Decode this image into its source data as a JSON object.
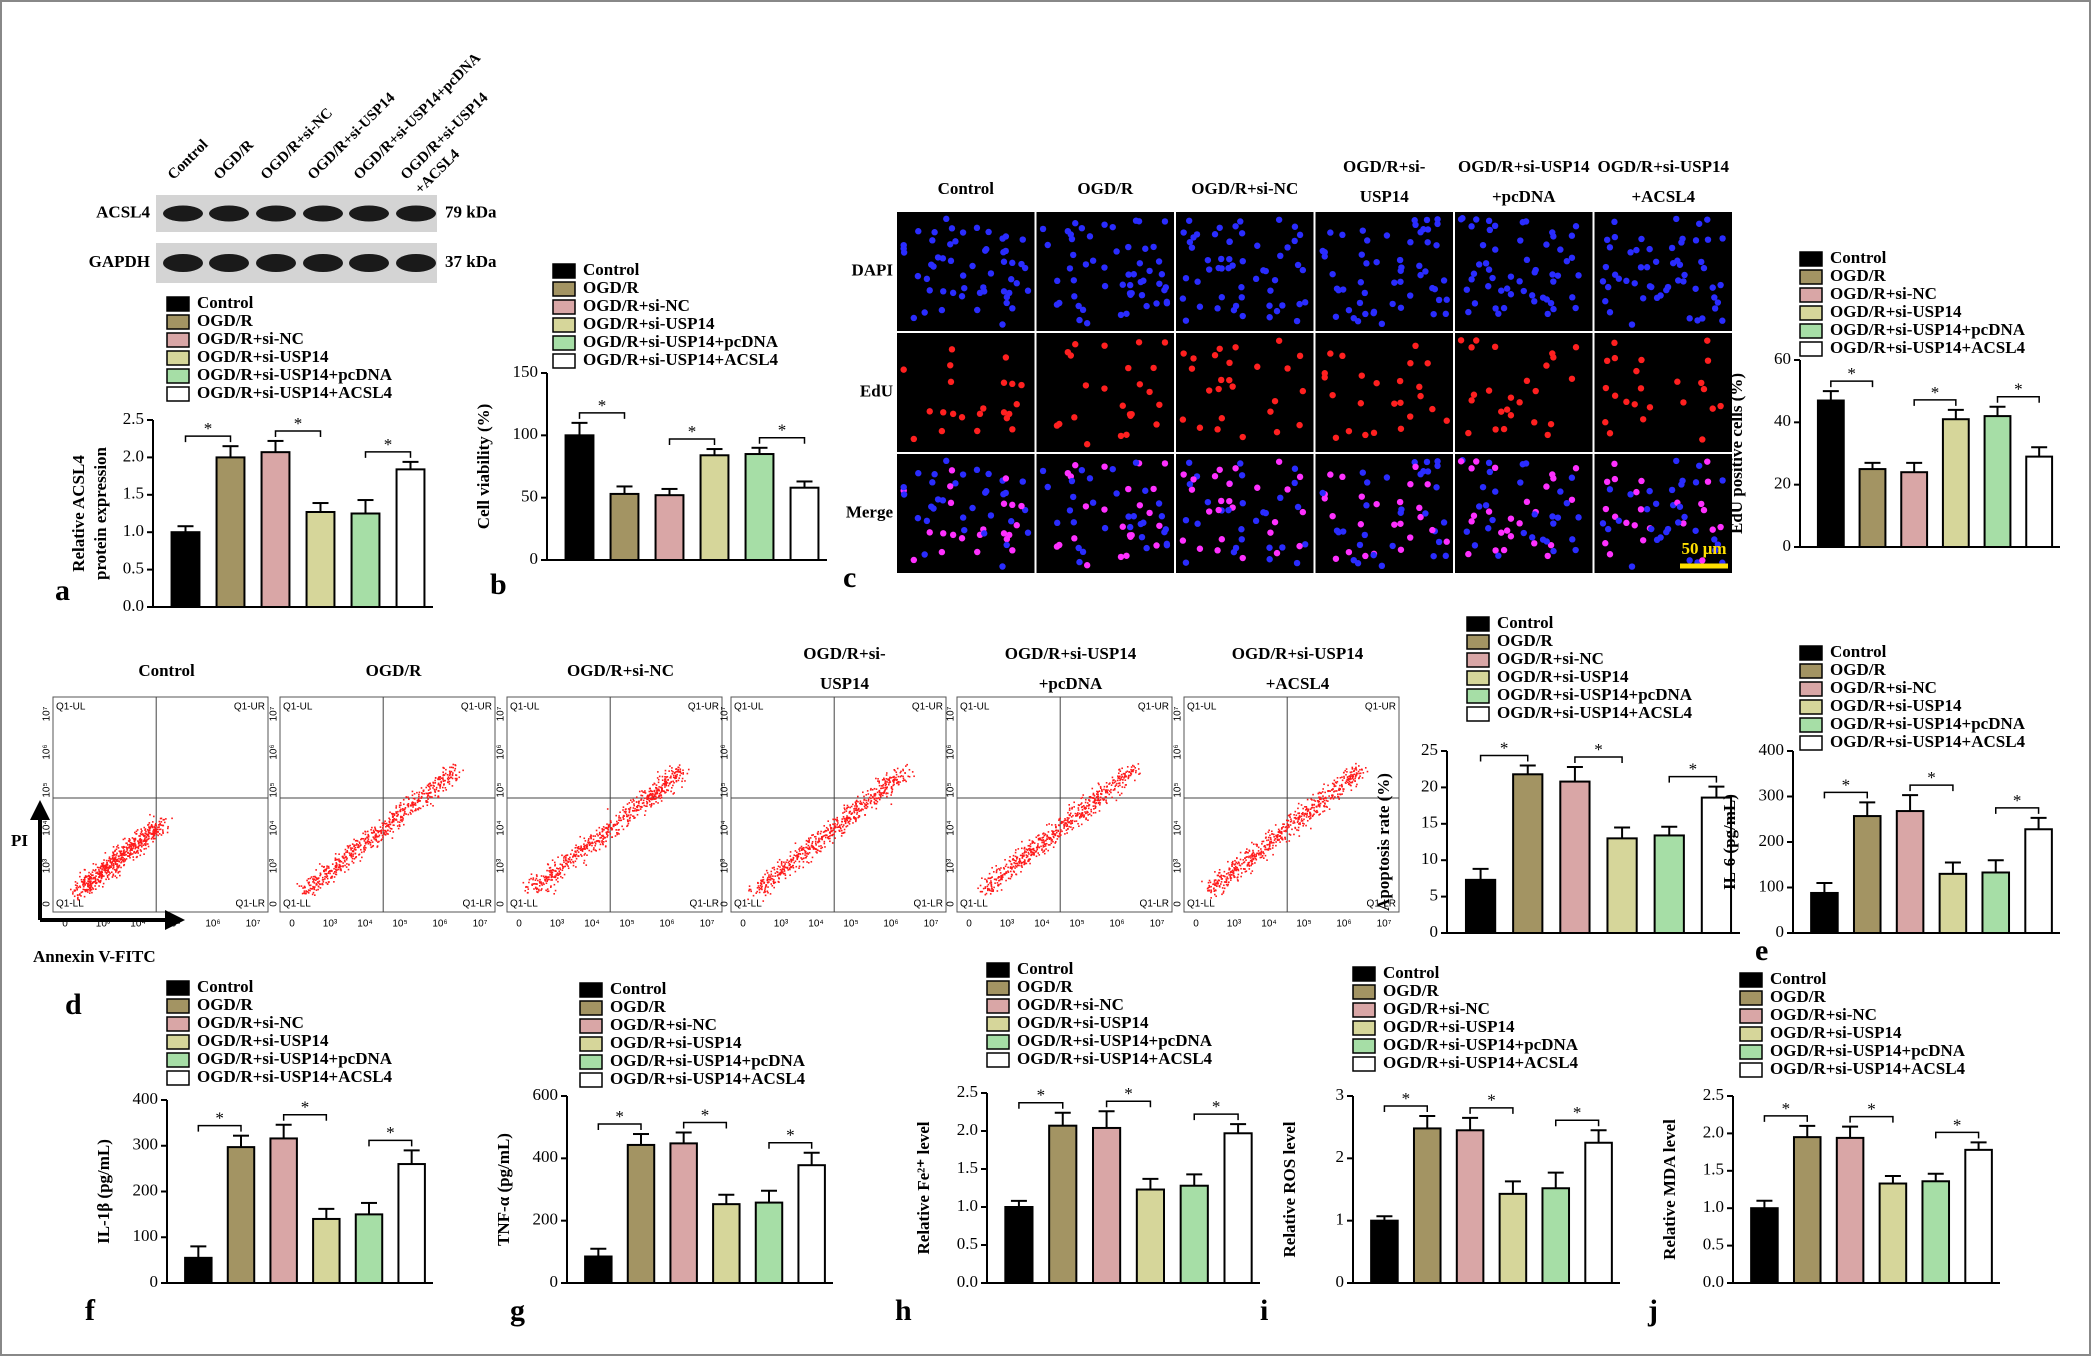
{
  "panel_letters": [
    "a",
    "b",
    "c",
    "d",
    "e",
    "f",
    "g",
    "h",
    "i",
    "j"
  ],
  "western_blot": {
    "lanes": [
      [
        "Control"
      ],
      [
        "OGD/R"
      ],
      [
        "OGD/R+si-NC"
      ],
      [
        "OGD/R+si-USP14"
      ],
      [
        "OGD/R+si-USP14+pcDNA"
      ],
      [
        "OGD/R+si-USP14",
        "+ACSL4"
      ]
    ],
    "proteins": [
      {
        "name": "ACSL4",
        "size": "79 kDa"
      },
      {
        "name": "GAPDH",
        "size": "37 kDa"
      }
    ]
  },
  "microscopy": {
    "columns": [
      [
        "Control"
      ],
      [
        "OGD/R"
      ],
      [
        "OGD/R+si-NC"
      ],
      [
        "OGD/R+si-",
        "USP14"
      ],
      [
        "OGD/R+si-USP14",
        "+pcDNA"
      ],
      [
        "OGD/R+si-USP14",
        "+ACSL4"
      ]
    ],
    "rows": [
      "DAPI",
      "EdU",
      "Merge"
    ],
    "scale_bar": "50 μm"
  },
  "flow_cytometry": {
    "titles": [
      [
        "Control"
      ],
      [
        "OGD/R"
      ],
      [
        "OGD/R+si-NC"
      ],
      [
        "OGD/R+si-",
        "USP14"
      ],
      [
        "OGD/R+si-USP14",
        "+pcDNA"
      ],
      [
        "OGD/R+si-USP14",
        "+ACSL4"
      ]
    ],
    "quadrants": [
      "Q1-UL",
      "Q1-UR",
      "Q1-LL",
      "Q1-LR"
    ],
    "axis_ticks": [
      "0",
      "10³",
      "10⁴",
      "10⁵",
      "10⁶",
      "10⁷"
    ],
    "xlabel": "Annexin V-FITC",
    "ylabel": "PI"
  },
  "chart_data": [
    {
      "type": "bar",
      "ylabel": [
        "Relative ACSL4",
        "protein expression"
      ],
      "categories": [
        "Control",
        "OGD/R",
        "OGD/R+si-NC",
        "OGD/R+si-USP14",
        "OGD/R+si-USP14+pcDNA",
        "OGD/R+si-USP14+ACSL4"
      ],
      "colors": [
        "#000000",
        "#a39463",
        "#d9a6a6",
        "#d6d69a",
        "#a6dea6",
        "#ffffff"
      ],
      "values": [
        1.0,
        2.0,
        2.07,
        1.27,
        1.25,
        1.84
      ],
      "errors": [
        0.08,
        0.15,
        0.15,
        0.12,
        0.18,
        0.1
      ],
      "ylim": [
        0,
        2.5
      ],
      "yticks": [
        {
          "value": 0,
          "label": "0.0"
        },
        0.5,
        {
          "value": 1,
          "label": "1.0"
        },
        1.5,
        {
          "value": 2,
          "label": "2.0"
        },
        2.5
      ],
      "brackets": [
        {
          "from": 0,
          "to": 1,
          "label": "*"
        },
        {
          "from": 2,
          "to": 3,
          "label": "*"
        },
        {
          "from": 4,
          "to": 5,
          "label": "*"
        }
      ]
    },
    {
      "type": "bar",
      "ylabel": [
        "Cell viability (%)"
      ],
      "categories": [
        "Control",
        "OGD/R",
        "OGD/R+si-NC",
        "OGD/R+si-USP14",
        "OGD/R+si-USP14+pcDNA",
        "OGD/R+si-USP14+ACSL4"
      ],
      "colors": [
        "#000000",
        "#a39463",
        "#d9a6a6",
        "#d6d69a",
        "#a6dea6",
        "#ffffff"
      ],
      "values": [
        100,
        53,
        52,
        84,
        85,
        58
      ],
      "errors": [
        10,
        6,
        5,
        5,
        5,
        5
      ],
      "ylim": [
        0,
        150
      ],
      "yticks": [
        0,
        50,
        100,
        150
      ],
      "brackets": [
        {
          "from": 0,
          "to": 1,
          "label": "*"
        },
        {
          "from": 2,
          "to": 3,
          "label": "*"
        },
        {
          "from": 4,
          "to": 5,
          "label": "*"
        }
      ]
    },
    {
      "type": "bar",
      "ylabel": [
        "EdU positive cells (%)"
      ],
      "categories": [
        "Control",
        "OGD/R",
        "OGD/R+si-NC",
        "OGD/R+si-USP14",
        "OGD/R+si-USP14+pcDNA",
        "OGD/R+si-USP14+ACSL4"
      ],
      "colors": [
        "#000000",
        "#a39463",
        "#d9a6a6",
        "#d6d69a",
        "#a6dea6",
        "#ffffff"
      ],
      "values": [
        47,
        25,
        24,
        41,
        42,
        29
      ],
      "errors": [
        3,
        2,
        3,
        3,
        3,
        3
      ],
      "ylim": [
        0,
        60
      ],
      "yticks": [
        0,
        20,
        40,
        60
      ],
      "brackets": [
        {
          "from": 0,
          "to": 1,
          "label": "*"
        },
        {
          "from": 2,
          "to": 3,
          "label": "*"
        },
        {
          "from": 4,
          "to": 5,
          "label": "*"
        }
      ]
    },
    {
      "type": "bar",
      "ylabel": [
        "Apoptosis rate (%)"
      ],
      "categories": [
        "Control",
        "OGD/R",
        "OGD/R+si-NC",
        "OGD/R+si-USP14",
        "OGD/R+si-USP14+pcDNA",
        "OGD/R+si-USP14+ACSL4"
      ],
      "colors": [
        "#000000",
        "#a39463",
        "#d9a6a6",
        "#d6d69a",
        "#a6dea6",
        "#ffffff"
      ],
      "values": [
        7.3,
        21.8,
        20.8,
        13,
        13.4,
        18.6
      ],
      "errors": [
        1.5,
        1.2,
        2,
        1.5,
        1.2,
        1.5
      ],
      "ylim": [
        0,
        25
      ],
      "yticks": [
        0,
        5,
        10,
        15,
        20,
        25
      ],
      "brackets": [
        {
          "from": 0,
          "to": 1,
          "label": "*"
        },
        {
          "from": 2,
          "to": 3,
          "label": "*"
        },
        {
          "from": 4,
          "to": 5,
          "label": "*"
        }
      ]
    },
    {
      "type": "bar",
      "ylabel": [
        "IL-6 (pg/mL)"
      ],
      "categories": [
        "Control",
        "OGD/R",
        "OGD/R+si-NC",
        "OGD/R+si-USP14",
        "OGD/R+si-USP14+pcDNA",
        "OGD/R+si-USP14+ACSL4"
      ],
      "colors": [
        "#000000",
        "#a39463",
        "#d9a6a6",
        "#d6d69a",
        "#a6dea6",
        "#ffffff"
      ],
      "values": [
        88,
        257,
        268,
        130,
        133,
        228
      ],
      "errors": [
        22,
        30,
        35,
        25,
        27,
        25
      ],
      "ylim": [
        0,
        400
      ],
      "yticks": [
        0,
        100,
        200,
        300,
        400
      ],
      "brackets": [
        {
          "from": 0,
          "to": 1,
          "label": "*"
        },
        {
          "from": 2,
          "to": 3,
          "label": "*"
        },
        {
          "from": 4,
          "to": 5,
          "label": "*"
        }
      ]
    },
    {
      "type": "bar",
      "ylabel": [
        "IL-1β (pg/mL)"
      ],
      "categories": [
        "Control",
        "OGD/R",
        "OGD/R+si-NC",
        "OGD/R+si-USP14",
        "OGD/R+si-USP14+pcDNA",
        "OGD/R+si-USP14+ACSL4"
      ],
      "colors": [
        "#000000",
        "#a39463",
        "#d9a6a6",
        "#d6d69a",
        "#a6dea6",
        "#ffffff"
      ],
      "values": [
        55,
        297,
        316,
        140,
        150,
        260
      ],
      "errors": [
        25,
        25,
        30,
        22,
        25,
        30
      ],
      "ylim": [
        0,
        400
      ],
      "yticks": [
        0,
        100,
        200,
        300,
        400
      ],
      "brackets": [
        {
          "from": 0,
          "to": 1,
          "label": "*"
        },
        {
          "from": 2,
          "to": 3,
          "label": "*"
        },
        {
          "from": 4,
          "to": 5,
          "label": "*"
        }
      ]
    },
    {
      "type": "bar",
      "ylabel": [
        "TNF-α (pg/mL)"
      ],
      "categories": [
        "Control",
        "OGD/R",
        "OGD/R+si-NC",
        "OGD/R+si-USP14",
        "OGD/R+si-USP14+pcDNA",
        "OGD/R+si-USP14+ACSL4"
      ],
      "colors": [
        "#000000",
        "#a39463",
        "#d9a6a6",
        "#d6d69a",
        "#a6dea6",
        "#ffffff"
      ],
      "values": [
        85,
        443,
        448,
        253,
        258,
        378
      ],
      "errors": [
        25,
        35,
        35,
        30,
        38,
        40
      ],
      "ylim": [
        0,
        600
      ],
      "yticks": [
        0,
        200,
        400,
        600
      ],
      "brackets": [
        {
          "from": 0,
          "to": 1,
          "label": "*"
        },
        {
          "from": 2,
          "to": 3,
          "label": "*"
        },
        {
          "from": 4,
          "to": 5,
          "label": "*"
        }
      ]
    },
    {
      "type": "bar",
      "ylabel": [
        "Relative Fe²⁺ level"
      ],
      "categories": [
        "Control",
        "OGD/R",
        "OGD/R+si-NC",
        "OGD/R+si-USP14",
        "OGD/R+si-USP14+pcDNA",
        "OGD/R+si-USP14+ACSL4"
      ],
      "colors": [
        "#000000",
        "#a39463",
        "#d9a6a6",
        "#d6d69a",
        "#a6dea6",
        "#ffffff"
      ],
      "values": [
        1.0,
        2.07,
        2.04,
        1.23,
        1.28,
        1.97
      ],
      "errors": [
        0.08,
        0.17,
        0.22,
        0.14,
        0.15,
        0.12
      ],
      "ylim": [
        0,
        2.5
      ],
      "yticks": [
        {
          "value": 0,
          "label": "0.0"
        },
        0.5,
        {
          "value": 1,
          "label": "1.0"
        },
        1.5,
        {
          "value": 2,
          "label": "2.0"
        },
        2.5
      ],
      "brackets": [
        {
          "from": 0,
          "to": 1,
          "label": "*"
        },
        {
          "from": 2,
          "to": 3,
          "label": "*"
        },
        {
          "from": 4,
          "to": 5,
          "label": "*"
        }
      ]
    },
    {
      "type": "bar",
      "ylabel": [
        "Relative ROS level"
      ],
      "categories": [
        "Control",
        "OGD/R",
        "OGD/R+si-NC",
        "OGD/R+si-USP14",
        "OGD/R+si-USP14+pcDNA",
        "OGD/R+si-USP14+ACSL4"
      ],
      "colors": [
        "#000000",
        "#a39463",
        "#d9a6a6",
        "#d6d69a",
        "#a6dea6",
        "#ffffff"
      ],
      "values": [
        1.0,
        2.48,
        2.45,
        1.43,
        1.52,
        2.25
      ],
      "errors": [
        0.07,
        0.2,
        0.2,
        0.2,
        0.25,
        0.2
      ],
      "ylim": [
        0,
        3
      ],
      "yticks": [
        0,
        1,
        2,
        3
      ],
      "brackets": [
        {
          "from": 0,
          "to": 1,
          "label": "*"
        },
        {
          "from": 2,
          "to": 3,
          "label": "*"
        },
        {
          "from": 4,
          "to": 5,
          "label": "*"
        }
      ]
    },
    {
      "type": "bar",
      "ylabel": [
        "Relative MDA level"
      ],
      "categories": [
        "Control",
        "OGD/R",
        "OGD/R+si-NC",
        "OGD/R+si-USP14",
        "OGD/R+si-USP14+pcDNA",
        "OGD/R+si-USP14+ACSL4"
      ],
      "colors": [
        "#000000",
        "#a39463",
        "#d9a6a6",
        "#d6d69a",
        "#a6dea6",
        "#ffffff"
      ],
      "values": [
        1.0,
        1.95,
        1.94,
        1.33,
        1.36,
        1.78
      ],
      "errors": [
        0.1,
        0.15,
        0.15,
        0.1,
        0.1,
        0.1
      ],
      "ylim": [
        0,
        2.5
      ],
      "yticks": [
        {
          "value": 0,
          "label": "0.0"
        },
        0.5,
        {
          "value": 1,
          "label": "1.0"
        },
        1.5,
        {
          "value": 2,
          "label": "2.0"
        },
        2.5
      ],
      "brackets": [
        {
          "from": 0,
          "to": 1,
          "label": "*"
        },
        {
          "from": 2,
          "to": 3,
          "label": "*"
        },
        {
          "from": 4,
          "to": 5,
          "label": "*"
        }
      ]
    }
  ]
}
